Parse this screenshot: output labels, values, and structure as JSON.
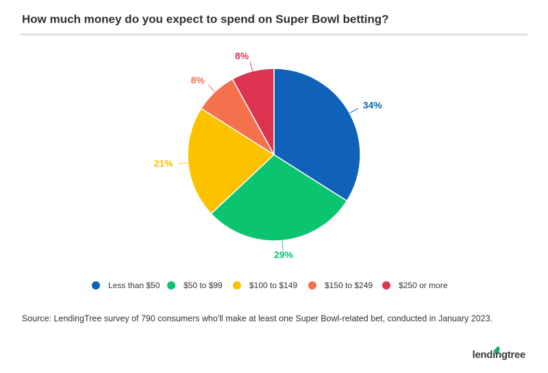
{
  "chart_data": {
    "type": "pie",
    "title": "How much money do you expect to spend on Super Bowl betting?",
    "categories": [
      "Less than $50",
      "$50 to $99",
      "$100 to $149",
      "$150 to $249",
      "$250 or more"
    ],
    "values": [
      34,
      29,
      21,
      8,
      8
    ],
    "value_labels": [
      "34%",
      "29%",
      "21%",
      "8%",
      "8%"
    ],
    "colors": [
      "#0f62b8",
      "#0bc46f",
      "#fcc200",
      "#f4714e",
      "#dc3450"
    ],
    "source": "Source: LendingTree survey of 790 consumers who'll make at least one Super Bowl-related bet, conducted in January 2023.",
    "brand": "lendingtree"
  }
}
